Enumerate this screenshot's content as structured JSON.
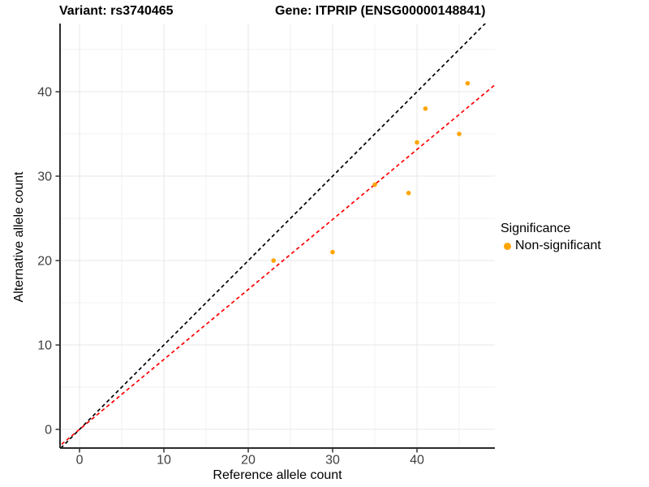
{
  "figure": {
    "title_left": "Variant: rs3740465",
    "title_right": "Gene: ITPRIP (ENSG00000148841)"
  },
  "legend": {
    "title": "Significance",
    "items": [
      {
        "label": "Non-significant",
        "color": "#FFA500"
      }
    ]
  },
  "chart_data": {
    "type": "scatter",
    "title": "Variant: rs3740465 — Gene: ITPRIP (ENSG00000148841)",
    "xlabel": "Reference allele count",
    "ylabel": "Alternative allele count",
    "xlim": [
      -2.31,
      49.23
    ],
    "ylim": [
      -2.21,
      48.08
    ],
    "xticks": [
      0,
      10,
      20,
      30,
      40
    ],
    "yticks": [
      0,
      10,
      20,
      30,
      40
    ],
    "xminor": [
      5,
      15,
      25,
      35,
      45
    ],
    "yminor": [
      5,
      15,
      25,
      35,
      45
    ],
    "grid": "major and minor, light gray on white",
    "legend_position": "right",
    "series": [
      {
        "name": "Non-significant",
        "color": "#FFA500",
        "marker": "circle",
        "marker_radius": 2.8,
        "points": [
          [
            23,
            20
          ],
          [
            30,
            21
          ],
          [
            35,
            29
          ],
          [
            39,
            28
          ],
          [
            40,
            34
          ],
          [
            41,
            38
          ],
          [
            45,
            35
          ],
          [
            46,
            41
          ]
        ]
      }
    ],
    "lines": [
      {
        "name": "identity-line",
        "slope": 1,
        "intercept": 0,
        "color": "#000000",
        "style": "dashed"
      },
      {
        "name": "fit-line",
        "slope": 0.829,
        "intercept": 0,
        "color": "#FF0000",
        "style": "dashed"
      }
    ]
  }
}
